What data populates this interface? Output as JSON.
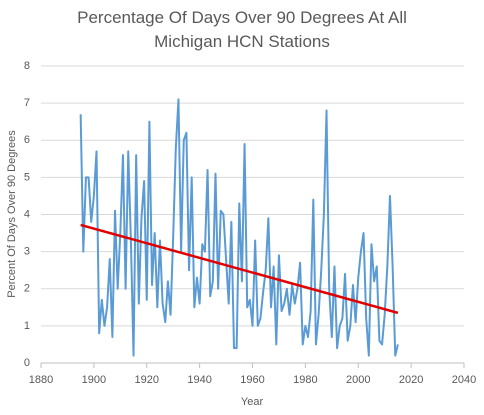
{
  "chart_data": {
    "type": "line",
    "title": "Percentage Of Days Over 90 Degrees At All Michigan HCN Stations",
    "x_label": "Year",
    "y_label": "Percent Of Days Over 90 Degrees",
    "xlim": [
      1880,
      2040
    ],
    "xticks": [
      1880,
      1900,
      1920,
      1940,
      1960,
      1980,
      2000,
      2020,
      2040
    ],
    "ylim": [
      0,
      8
    ],
    "yticks": [
      0,
      1,
      2,
      3,
      4,
      5,
      6,
      7,
      8
    ],
    "grid": true,
    "series": [
      {
        "color": "#5b9bd5",
        "x": [
          1895,
          1896,
          1897,
          1898,
          1899,
          1900,
          1901,
          1902,
          1903,
          1904,
          1905,
          1906,
          1907,
          1908,
          1909,
          1910,
          1911,
          1912,
          1913,
          1914,
          1915,
          1916,
          1917,
          1918,
          1919,
          1920,
          1921,
          1922,
          1923,
          1924,
          1925,
          1926,
          1927,
          1928,
          1929,
          1930,
          1931,
          1932,
          1933,
          1934,
          1935,
          1936,
          1937,
          1938,
          1939,
          1940,
          1941,
          1942,
          1943,
          1944,
          1945,
          1946,
          1947,
          1948,
          1949,
          1950,
          1951,
          1952,
          1953,
          1954,
          1955,
          1956,
          1957,
          1958,
          1959,
          1960,
          1961,
          1962,
          1963,
          1964,
          1965,
          1966,
          1967,
          1968,
          1969,
          1970,
          1971,
          1972,
          1973,
          1974,
          1975,
          1976,
          1977,
          1978,
          1979,
          1980,
          1981,
          1982,
          1983,
          1984,
          1985,
          1986,
          1987,
          1988,
          1989,
          1990,
          1991,
          1992,
          1993,
          1994,
          1995,
          1996,
          1997,
          1998,
          1999,
          2000,
          2001,
          2002,
          2003,
          2004,
          2005,
          2006,
          2007,
          2008,
          2009,
          2010,
          2011,
          2012,
          2013,
          2014,
          2015
        ],
        "values": [
          6.7,
          3.0,
          5.0,
          5.0,
          3.8,
          4.5,
          5.7,
          0.8,
          1.7,
          1.0,
          1.5,
          2.8,
          0.7,
          4.1,
          2.0,
          3.5,
          5.6,
          2.0,
          5.7,
          3.3,
          0.2,
          5.6,
          1.6,
          3.9,
          4.9,
          1.7,
          6.5,
          2.1,
          3.5,
          1.5,
          3.3,
          1.6,
          1.1,
          2.2,
          1.3,
          3.4,
          5.8,
          7.1,
          3.0,
          6.0,
          6.2,
          2.5,
          5.0,
          1.5,
          2.3,
          1.6,
          3.2,
          3.0,
          5.2,
          1.8,
          2.2,
          5.1,
          2.0,
          4.1,
          4.0,
          2.8,
          1.6,
          3.8,
          0.4,
          0.4,
          4.3,
          2.2,
          5.9,
          1.5,
          1.7,
          1.0,
          3.3,
          1.0,
          1.2,
          1.9,
          2.5,
          3.9,
          1.5,
          2.6,
          0.5,
          2.9,
          1.4,
          1.6,
          2.0,
          1.3,
          2.1,
          1.6,
          2.0,
          2.7,
          0.5,
          1.0,
          0.7,
          1.4,
          4.4,
          0.5,
          1.3,
          2.5,
          4.0,
          6.8,
          2.0,
          0.7,
          2.6,
          0.4,
          1.0,
          1.2,
          2.4,
          0.6,
          1.0,
          2.1,
          1.1,
          2.3,
          3.0,
          3.5,
          1.2,
          0.2,
          3.2,
          2.2,
          2.6,
          0.6,
          0.5,
          1.3,
          2.6,
          4.5,
          2.6,
          0.2,
          0.5
        ]
      },
      {
        "color": "#e00000",
        "x": [
          1895,
          2015
        ],
        "values": [
          3.72,
          1.35
        ]
      }
    ]
  }
}
